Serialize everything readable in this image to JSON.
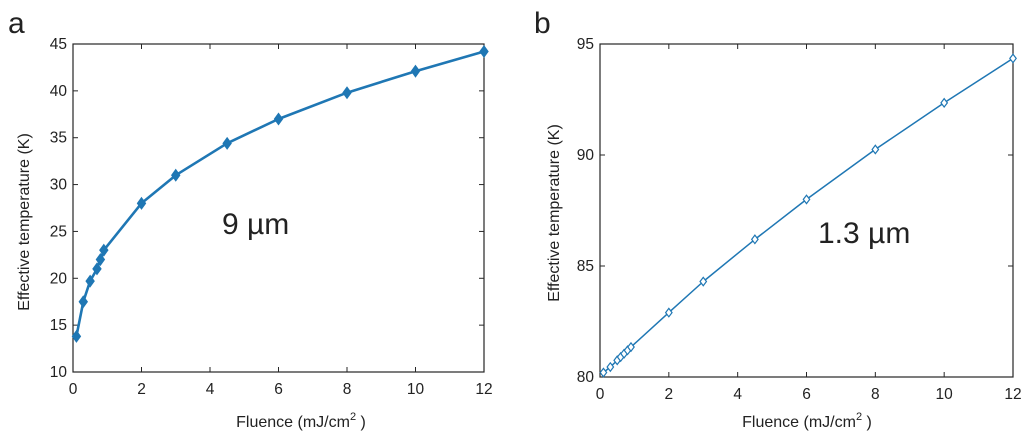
{
  "chart_data": [
    {
      "type": "line",
      "panel_label": "a",
      "annotation": "9 µm",
      "xlabel_main": "Fluence (mJ/cm",
      "xlabel_sup": "2",
      "xlabel_end": " )",
      "ylabel": "Effective temperature (K)",
      "xlim": [
        0,
        12
      ],
      "ylim": [
        10,
        45
      ],
      "x_ticks": [
        "0",
        "2",
        "4",
        "6",
        "8",
        "10",
        "12"
      ],
      "y_ticks": [
        "10",
        "15",
        "20",
        "25",
        "30",
        "35",
        "40",
        "45"
      ],
      "box": true,
      "grid": false,
      "marker": "diamond-filled",
      "line_color": "#1f77b4",
      "series": [
        {
          "x": [
            0.1,
            0.3,
            0.5,
            0.7,
            0.8,
            0.9,
            2,
            3,
            4.5,
            6,
            8,
            10,
            12
          ],
          "y": [
            13.8,
            17.5,
            19.7,
            21.0,
            22.0,
            23.0,
            28.0,
            31.0,
            34.4,
            37.0,
            39.8,
            42.1,
            44.2
          ]
        }
      ]
    },
    {
      "type": "line",
      "panel_label": "b",
      "annotation": "1.3 µm",
      "xlabel_main": "Fluence (mJ/cm",
      "xlabel_sup": "2",
      "xlabel_end": " )",
      "ylabel": "Effective temperature (K)",
      "xlim": [
        0,
        12
      ],
      "ylim": [
        80,
        95
      ],
      "x_ticks": [
        "0",
        "2",
        "4",
        "6",
        "8",
        "10",
        "12"
      ],
      "y_ticks": [
        "80",
        "85",
        "90",
        "95"
      ],
      "box": true,
      "grid": false,
      "marker": "diamond-open",
      "line_color": "#1f77b4",
      "series": [
        {
          "x": [
            0.1,
            0.3,
            0.5,
            0.6,
            0.7,
            0.8,
            0.9,
            2,
            3,
            4.5,
            6,
            8,
            10,
            12
          ],
          "y": [
            80.2,
            80.45,
            80.75,
            80.9,
            81.05,
            81.2,
            81.35,
            82.9,
            84.3,
            86.2,
            88.0,
            90.25,
            92.35,
            94.35
          ]
        }
      ]
    }
  ]
}
